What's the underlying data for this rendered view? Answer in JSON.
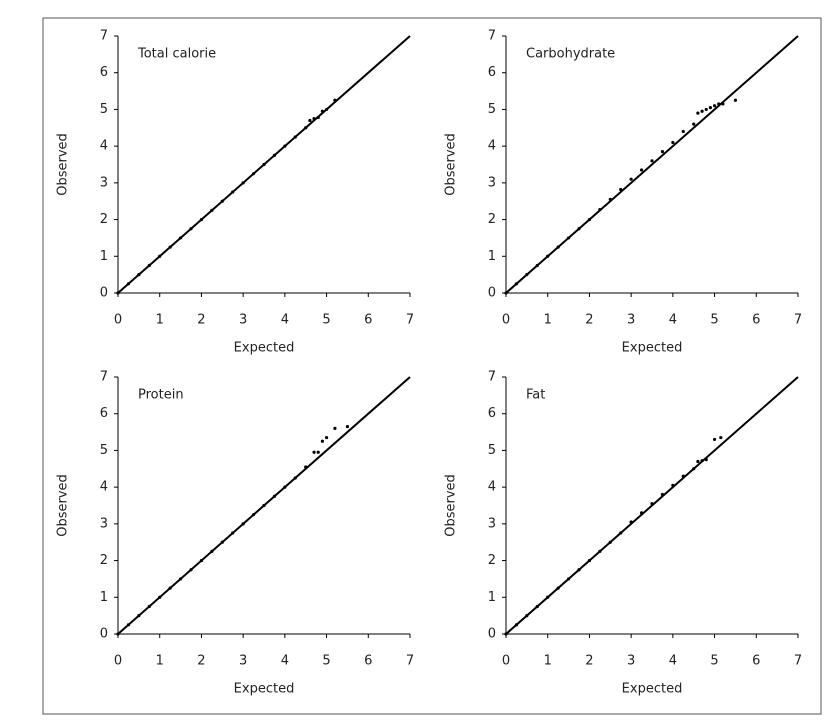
{
  "chart_data": [
    {
      "type": "scatter",
      "title": "Total calorie",
      "x_label": "Expected",
      "y_label": "Observed",
      "color": "#000000",
      "reference_line": true,
      "x": [
        0,
        0.25,
        0.5,
        0.75,
        1,
        1.25,
        1.5,
        1.75,
        2,
        2.25,
        2.5,
        2.75,
        3,
        3.25,
        3.5,
        3.75,
        4,
        4.25,
        4.5,
        4.6,
        4.7,
        4.8,
        4.9,
        5.0,
        5.2
      ],
      "y": [
        0,
        0.25,
        0.5,
        0.75,
        1,
        1.25,
        1.5,
        1.75,
        2,
        2.25,
        2.5,
        2.75,
        3,
        3.25,
        3.5,
        3.75,
        4,
        4.25,
        4.5,
        4.7,
        4.75,
        4.78,
        4.95,
        5.0,
        5.25
      ],
      "xlim": [
        0,
        7
      ],
      "ylim": [
        0,
        7
      ],
      "xticks": [
        0,
        1,
        2,
        3,
        4,
        5,
        6,
        7
      ],
      "yticks": [
        0,
        1,
        2,
        3,
        4,
        5,
        6,
        7
      ]
    },
    {
      "type": "scatter",
      "title": "Carbohydrate",
      "x_label": "Expected",
      "y_label": "Observed",
      "color": "#000000",
      "reference_line": true,
      "x": [
        0,
        0.25,
        0.5,
        0.75,
        1,
        1.25,
        1.5,
        1.75,
        2,
        2.25,
        2.5,
        2.75,
        3,
        3.25,
        3.5,
        3.75,
        4,
        4.25,
        4.5,
        4.6,
        4.7,
        4.8,
        4.9,
        5.0,
        5.1,
        5.2,
        5.5
      ],
      "y": [
        0,
        0.25,
        0.5,
        0.75,
        1,
        1.25,
        1.5,
        1.75,
        2,
        2.27,
        2.55,
        2.82,
        3.1,
        3.35,
        3.6,
        3.85,
        4.1,
        4.4,
        4.6,
        4.9,
        4.95,
        5.0,
        5.05,
        5.1,
        5.15,
        5.15,
        5.25
      ],
      "xlim": [
        0,
        7
      ],
      "ylim": [
        0,
        7
      ],
      "xticks": [
        0,
        1,
        2,
        3,
        4,
        5,
        6,
        7
      ],
      "yticks": [
        0,
        1,
        2,
        3,
        4,
        5,
        6,
        7
      ]
    },
    {
      "type": "scatter",
      "title": "Protein",
      "x_label": "Expected",
      "y_label": "Observed",
      "color": "#000000",
      "reference_line": true,
      "x": [
        0,
        0.25,
        0.5,
        0.75,
        1,
        1.25,
        1.5,
        1.75,
        2,
        2.25,
        2.5,
        2.75,
        3,
        3.25,
        3.5,
        3.75,
        4,
        4.25,
        4.5,
        4.7,
        4.8,
        4.9,
        5.0,
        5.2,
        5.5
      ],
      "y": [
        0,
        0.25,
        0.5,
        0.75,
        1,
        1.25,
        1.5,
        1.75,
        2,
        2.25,
        2.5,
        2.75,
        3,
        3.25,
        3.5,
        3.75,
        4,
        4.25,
        4.55,
        4.95,
        4.95,
        5.25,
        5.35,
        5.6,
        5.65
      ],
      "xlim": [
        0,
        7
      ],
      "ylim": [
        0,
        7
      ],
      "xticks": [
        0,
        1,
        2,
        3,
        4,
        5,
        6,
        7
      ],
      "yticks": [
        0,
        1,
        2,
        3,
        4,
        5,
        6,
        7
      ]
    },
    {
      "type": "scatter",
      "title": "Fat",
      "x_label": "Expected",
      "y_label": "Observed",
      "color": "#000000",
      "reference_line": true,
      "x": [
        0,
        0.25,
        0.5,
        0.75,
        1,
        1.25,
        1.5,
        1.75,
        2,
        2.25,
        2.5,
        2.75,
        3,
        3.25,
        3.5,
        3.75,
        4,
        4.25,
        4.5,
        4.6,
        4.7,
        4.8,
        5.0,
        5.15
      ],
      "y": [
        0,
        0.25,
        0.5,
        0.75,
        1,
        1.25,
        1.5,
        1.75,
        2,
        2.25,
        2.5,
        2.75,
        3.05,
        3.3,
        3.55,
        3.8,
        4.05,
        4.3,
        4.5,
        4.7,
        4.72,
        4.75,
        5.3,
        5.35
      ],
      "xlim": [
        0,
        7
      ],
      "ylim": [
        0,
        7
      ],
      "xticks": [
        0,
        1,
        2,
        3,
        4,
        5,
        6,
        7
      ],
      "yticks": [
        0,
        1,
        2,
        3,
        4,
        5,
        6,
        7
      ]
    }
  ]
}
